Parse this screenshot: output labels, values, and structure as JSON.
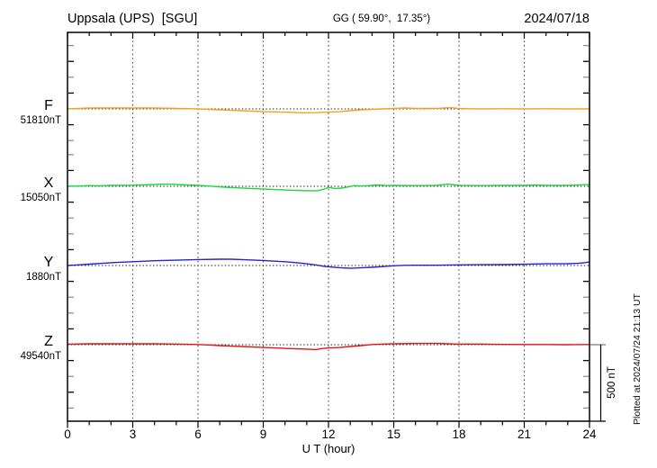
{
  "header": {
    "station": "Uppsala (UPS)  [SGU]",
    "coordinates": "GG ( 59.90°,  17.35°)",
    "date": "2024/07/18"
  },
  "side": {
    "scale_label": "500 nT",
    "plotted_at": "Plotted at 2024/07/24 21:13 UT"
  },
  "chart_data": {
    "type": "line",
    "title": "Uppsala (UPS) [SGU] magnetogram 2024/07/18",
    "xlabel": "U T (hour)",
    "x_range": [
      0,
      24
    ],
    "x_major_ticks": [
      0,
      3,
      6,
      9,
      12,
      15,
      18,
      21,
      24
    ],
    "x_minor_tick_every_hours": 1,
    "grid": "vertical dotted gridlines every 3 hours; dotted horizontal baseline per trace",
    "scale_bar": {
      "label": "500 nT",
      "nT": 500
    },
    "series": [
      {
        "name": "F",
        "baseline_label": "51810nT",
        "baseline_nT": 51810,
        "color": "#f0a41e",
        "x": [
          0,
          0.5,
          1,
          2,
          3,
          4,
          5,
          6,
          7,
          8,
          9,
          10,
          10.8,
          11.5,
          12,
          12.5,
          13,
          13.5,
          14,
          14.5,
          15,
          15.5,
          16,
          17,
          17.6,
          18,
          18.5,
          19,
          20,
          21,
          22,
          23,
          24
        ],
        "delta_nT": [
          0,
          3,
          6,
          6,
          6,
          6,
          3,
          0,
          -6,
          -12,
          -18,
          -21,
          -25,
          -24,
          -21,
          -18,
          -12,
          -6,
          -3,
          0,
          3,
          6,
          3,
          3,
          8,
          3,
          1,
          0,
          1,
          0,
          1,
          0,
          0
        ]
      },
      {
        "name": "X",
        "baseline_label": "15050nT",
        "baseline_nT": 15050,
        "color": "#1bd63e",
        "x": [
          0,
          0.5,
          1,
          1.5,
          2,
          3,
          4,
          4.6,
          5,
          5.5,
          6,
          6.5,
          7,
          8,
          9,
          10,
          10.5,
          11,
          11.5,
          11.8,
          12,
          12.3,
          12.6,
          12.9,
          13.2,
          13.5,
          14,
          14.3,
          14.7,
          15,
          16,
          17,
          17.5,
          18,
          19,
          20,
          21,
          21.5,
          22,
          23,
          23.5,
          24
        ],
        "delta_nT": [
          0,
          2,
          5,
          3,
          6,
          7,
          12,
          14,
          12,
          9,
          6,
          2,
          -4,
          -11,
          -18,
          -24,
          -27,
          -29,
          -29,
          -18,
          -7,
          -14,
          -12,
          -4,
          5,
          2,
          6,
          9,
          5,
          6,
          5,
          6,
          14,
          6,
          5,
          6,
          6,
          8,
          6,
          6,
          8,
          11
        ]
      },
      {
        "name": "Y",
        "baseline_label": "1880nT",
        "baseline_nT": 1880,
        "color": "#2424d0",
        "x": [
          0,
          0.5,
          1,
          2,
          3,
          4,
          5,
          6,
          7,
          7.5,
          8,
          9,
          10,
          10.5,
          11,
          11.4,
          11.8,
          12,
          12.5,
          13,
          13.5,
          14,
          14.5,
          15,
          15.5,
          16,
          17,
          18,
          19,
          20,
          21,
          22,
          23,
          23.5,
          23.8,
          24
        ],
        "delta_nT": [
          0,
          4,
          9,
          18,
          25,
          31,
          35,
          39,
          41,
          41,
          39,
          33,
          25,
          19,
          11,
          4,
          -5,
          -8,
          -14,
          -18,
          -15,
          -12,
          -7,
          -2,
          1,
          2,
          2,
          4,
          5,
          6,
          8,
          11,
          12,
          14,
          19,
          24
        ]
      },
      {
        "name": "Z",
        "baseline_label": "49540nT",
        "baseline_nT": 49540,
        "color": "#e41414",
        "x": [
          0,
          1,
          2,
          3,
          4,
          5,
          6,
          6.5,
          7,
          8,
          9,
          10,
          10.5,
          11,
          11.4,
          11.7,
          12,
          12.5,
          13,
          13.5,
          13.8,
          14,
          14.5,
          15,
          16,
          17,
          17.5,
          18,
          19,
          20,
          21,
          22,
          23,
          24
        ],
        "delta_nT": [
          3,
          6,
          6,
          6,
          6,
          4,
          1,
          -2,
          -6,
          -12,
          -18,
          -24,
          -27,
          -29,
          -32,
          -25,
          -21,
          -18,
          -12,
          -6,
          -2,
          1,
          4,
          6,
          8,
          8,
          6,
          4,
          4,
          2,
          1,
          1,
          0,
          1
        ]
      }
    ]
  }
}
